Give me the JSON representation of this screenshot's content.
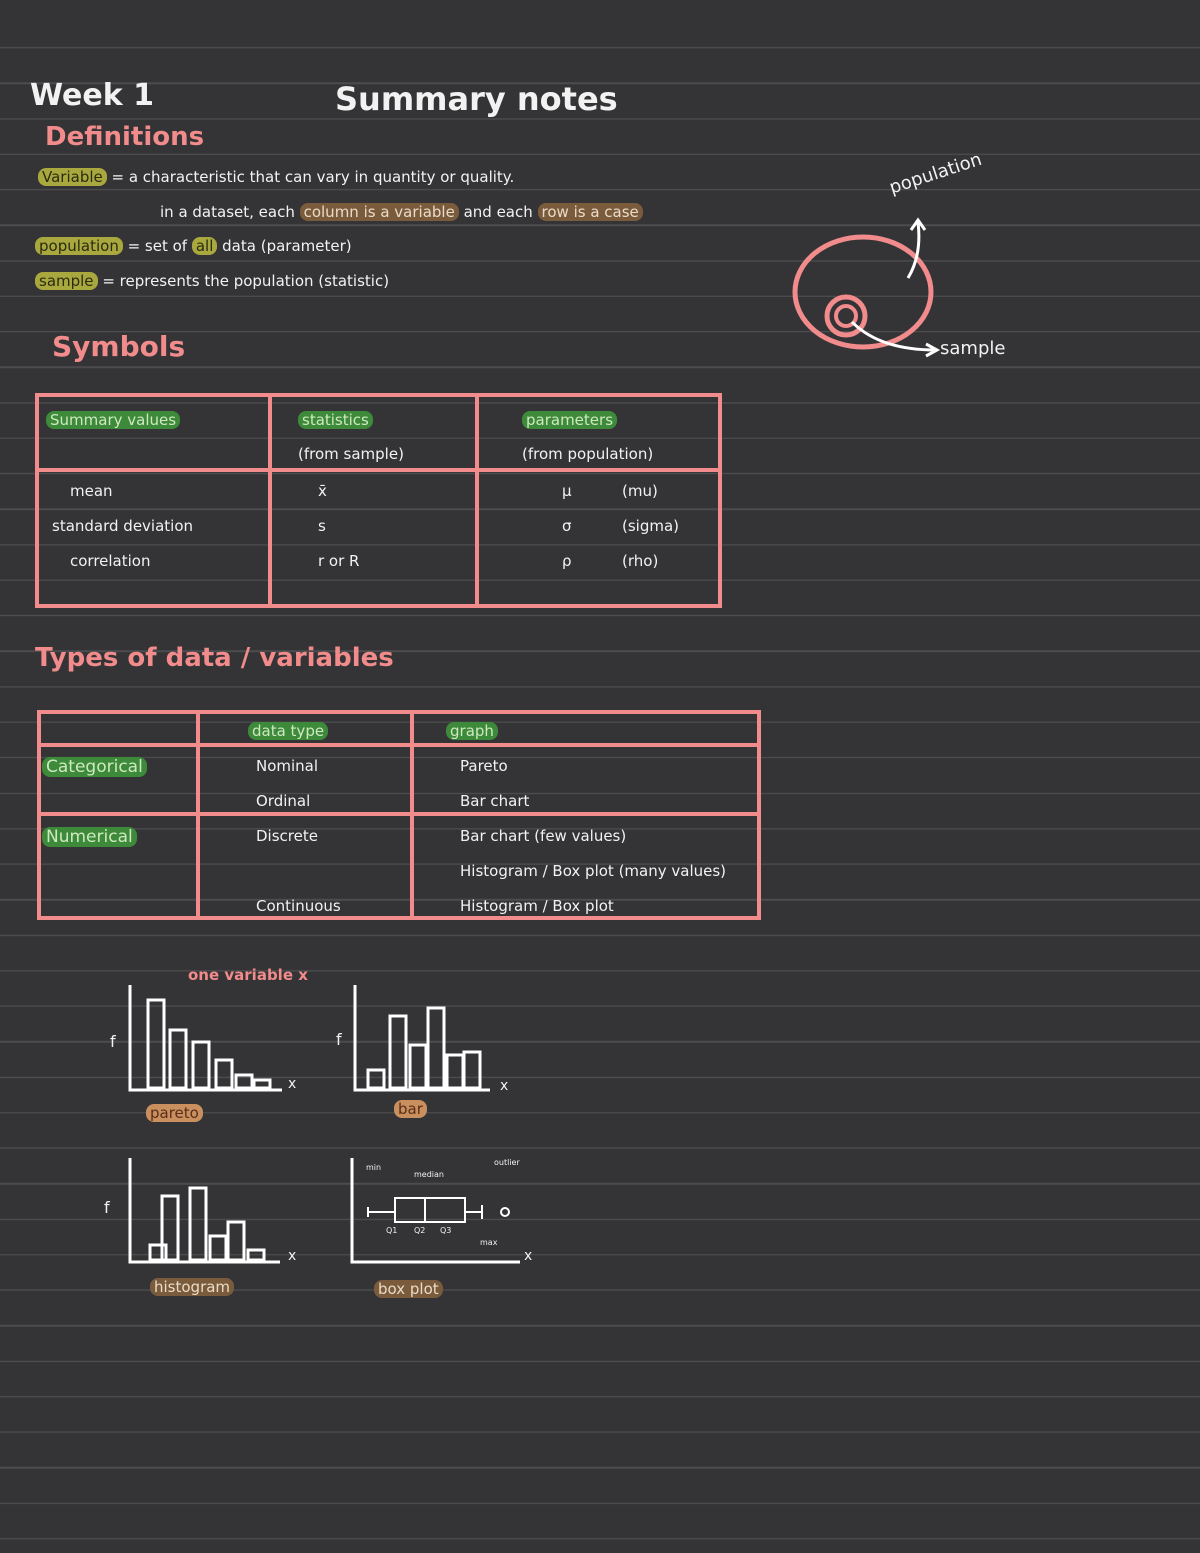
{
  "header": {
    "week": "Week 1",
    "title": "Summary notes"
  },
  "definitions": {
    "heading": "Definitions",
    "lines": [
      [
        "Variable",
        " = a characteristic that can vary in quantity or quality."
      ],
      [
        "in a dataset, each ",
        "column is a variable",
        " and each ",
        "row is a case"
      ],
      [
        "population",
        " = set of ",
        "all",
        " data (parameter)"
      ],
      [
        "sample",
        " = represents the population (statistic)"
      ]
    ]
  },
  "diagram": {
    "outer": "population",
    "inner": "sample"
  },
  "symbols": {
    "heading": "Symbols",
    "header": [
      [
        "Summary values"
      ],
      [
        "statistics",
        "(from sample)"
      ],
      [
        "parameters",
        "(from population)"
      ]
    ],
    "rows": [
      [
        "mean",
        "x̄",
        "μ",
        "(mu)"
      ],
      [
        "standard deviation",
        "s",
        "σ",
        "(sigma)"
      ],
      [
        "correlation",
        "r or R",
        "ρ",
        "(rho)"
      ]
    ]
  },
  "types": {
    "heading": "Types of data / variables",
    "header": [
      "data type",
      "graph"
    ],
    "groups": [
      {
        "name": "Categorical",
        "rows": [
          [
            "Nominal",
            "Pareto"
          ],
          [
            "Ordinal",
            "Bar chart"
          ]
        ]
      },
      {
        "name": "Numerical",
        "rows": [
          [
            "Discrete",
            "Bar chart (few values)"
          ],
          [
            "",
            "Histogram / Box plot (many values)"
          ],
          [
            "Continuous",
            "Histogram / Box plot"
          ]
        ]
      }
    ]
  },
  "graphs": {
    "caption": "one variable x",
    "y_label": "f",
    "x_label": "x",
    "names": [
      "pareto",
      "bar",
      "histogram",
      "box plot"
    ],
    "box_labels": [
      "min",
      "median",
      "outlier",
      "Q1",
      "Q2",
      "Q3",
      "max"
    ]
  }
}
